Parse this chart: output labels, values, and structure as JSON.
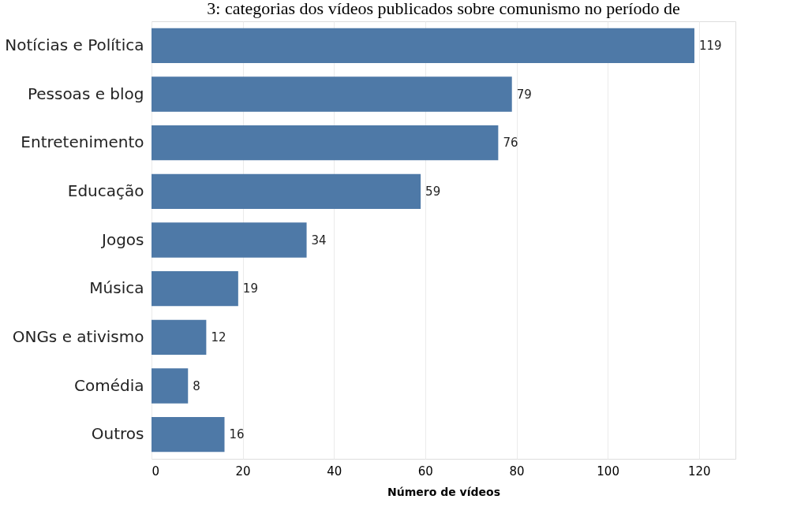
{
  "chart_data": {
    "type": "bar",
    "orientation": "horizontal",
    "title": "3: categorias dos vídeos publicados sobre comunismo no período de",
    "xlabel": "Número de vídeos",
    "categories": [
      "Notícias e Política",
      "Pessoas e blog",
      "Entretenimento",
      "Educação",
      "Jogos",
      "Música",
      "ONGs e ativismo",
      "Comédia",
      "Outros"
    ],
    "values": [
      119,
      79,
      76,
      59,
      34,
      19,
      12,
      8,
      16
    ],
    "color": "#4e79a7",
    "xlim": [
      0,
      128
    ],
    "xticks": [
      0,
      20,
      40,
      60,
      80,
      100,
      120
    ],
    "grid": "x",
    "data_labels": true
  }
}
